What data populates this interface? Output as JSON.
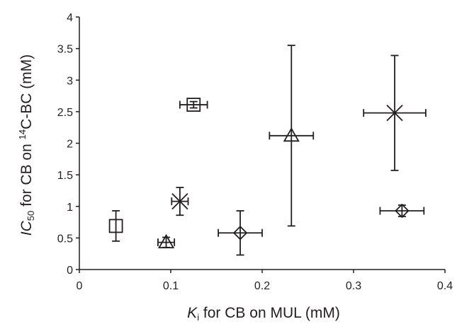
{
  "chart_data": {
    "type": "scatter",
    "title": "",
    "xlabel": {
      "italic": "K",
      "sub": "i",
      "rest": " for CB on MUL (mM)"
    },
    "ylabel": {
      "italic": "IC",
      "sub": "50",
      "mid": " for CB on ",
      "sup": "14",
      "rest": "C-BC (mM)"
    },
    "xlim": [
      0,
      0.4
    ],
    "ylim": [
      0,
      4
    ],
    "x_ticks": [
      "0",
      "0.1",
      "0.2",
      "0.3",
      "0.4"
    ],
    "x_tick_values": [
      0,
      0.1,
      0.2,
      0.3,
      0.4
    ],
    "y_ticks": [
      "0",
      "0.5",
      "1",
      "1.5",
      "2",
      "2.5",
      "3",
      "3.5",
      "4"
    ],
    "y_tick_values": [
      0,
      0.5,
      1,
      1.5,
      2,
      2.5,
      3,
      3.5,
      4
    ],
    "grid": false,
    "legend": "none",
    "color": "#231f20",
    "points": [
      {
        "marker": "square",
        "x": 0.04,
        "y": 0.69,
        "xerr": 0.0,
        "yerr": 0.24
      },
      {
        "marker": "square",
        "x": 0.125,
        "y": 2.61,
        "xerr": 0.015,
        "yerr": 0.05
      },
      {
        "marker": "triangle",
        "x": 0.095,
        "y": 0.43,
        "xerr": 0.009,
        "yerr": 0.08
      },
      {
        "marker": "triangle",
        "x": 0.232,
        "y": 2.12,
        "xerr": 0.024,
        "yerr": 1.43
      },
      {
        "marker": "star",
        "x": 0.11,
        "y": 1.08,
        "xerr": 0.009,
        "yerr": 0.22
      },
      {
        "marker": "star",
        "x": 0.345,
        "y": 2.48,
        "xerr": 0.034,
        "yerr": 0.91
      },
      {
        "marker": "diamond",
        "x": 0.176,
        "y": 0.58,
        "xerr": 0.024,
        "yerr": 0.35
      },
      {
        "marker": "diamond",
        "x": 0.353,
        "y": 0.93,
        "xerr": 0.024,
        "yerr": 0.09
      }
    ]
  }
}
